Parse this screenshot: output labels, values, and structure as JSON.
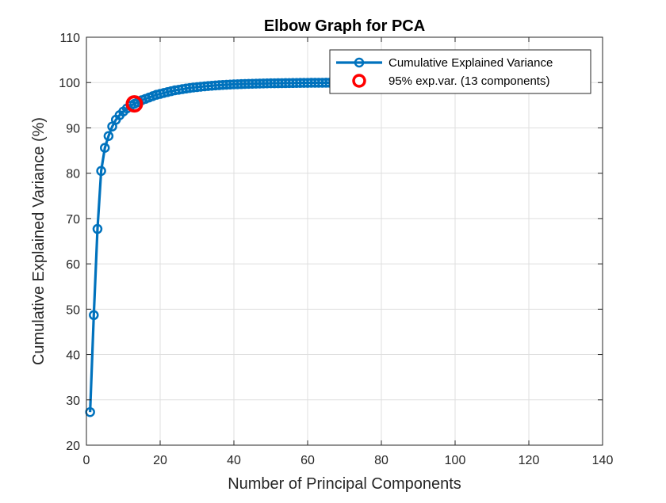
{
  "chart_data": {
    "type": "line",
    "title": "Elbow Graph for PCA",
    "xlabel": "Number of Principal Components",
    "ylabel": "Cumulative Explained Variance (%)",
    "xlim": [
      0,
      140
    ],
    "ylim": [
      20,
      110
    ],
    "xticks": [
      "0",
      "20",
      "40",
      "60",
      "80",
      "100",
      "120",
      "140"
    ],
    "yticks": [
      "20",
      "30",
      "40",
      "50",
      "60",
      "70",
      "80",
      "90",
      "100",
      "110"
    ],
    "grid": true,
    "legend_position": "top-right",
    "series": [
      {
        "name": "Cumulative Explained Variance",
        "color": "#0072bd",
        "marker": "circle",
        "x": [
          1,
          2,
          3,
          4,
          5,
          6,
          7,
          8,
          9,
          10,
          11,
          12,
          13,
          14,
          15,
          16,
          17,
          18,
          19,
          20,
          21,
          22,
          23,
          24,
          25,
          26,
          27,
          28,
          29,
          30,
          31,
          32,
          33,
          34,
          35,
          36,
          37,
          38,
          39,
          40,
          41,
          42,
          43,
          44,
          45,
          46,
          47,
          48,
          49,
          50,
          51,
          52,
          53,
          54,
          55,
          56,
          57,
          58,
          59,
          60,
          61,
          62,
          63,
          64,
          65,
          66,
          67,
          68,
          69,
          70,
          71,
          72,
          73,
          74
        ],
        "y": [
          27.3,
          48.7,
          67.7,
          80.5,
          85.6,
          88.2,
          90.3,
          91.8,
          92.8,
          93.6,
          94.3,
          94.9,
          95.3,
          95.7,
          96.1,
          96.4,
          96.7,
          97.0,
          97.3,
          97.5,
          97.7,
          97.9,
          98.1,
          98.3,
          98.4,
          98.55,
          98.68,
          98.8,
          98.9,
          99.0,
          99.08,
          99.16,
          99.23,
          99.3,
          99.36,
          99.42,
          99.47,
          99.52,
          99.56,
          99.6,
          99.63,
          99.66,
          99.69,
          99.72,
          99.74,
          99.76,
          99.78,
          99.8,
          99.82,
          99.84,
          99.85,
          99.86,
          99.87,
          99.88,
          99.89,
          99.9,
          99.91,
          99.92,
          99.93,
          99.94,
          99.95,
          99.95,
          99.96,
          99.96,
          99.97,
          99.97,
          99.98,
          99.98,
          99.99,
          99.99,
          99.99,
          100,
          100,
          100
        ]
      },
      {
        "name": "95% exp.var. (13 components)",
        "color": "#ff0000",
        "marker": "circle",
        "x": [
          13
        ],
        "y": [
          95.3
        ]
      }
    ]
  }
}
